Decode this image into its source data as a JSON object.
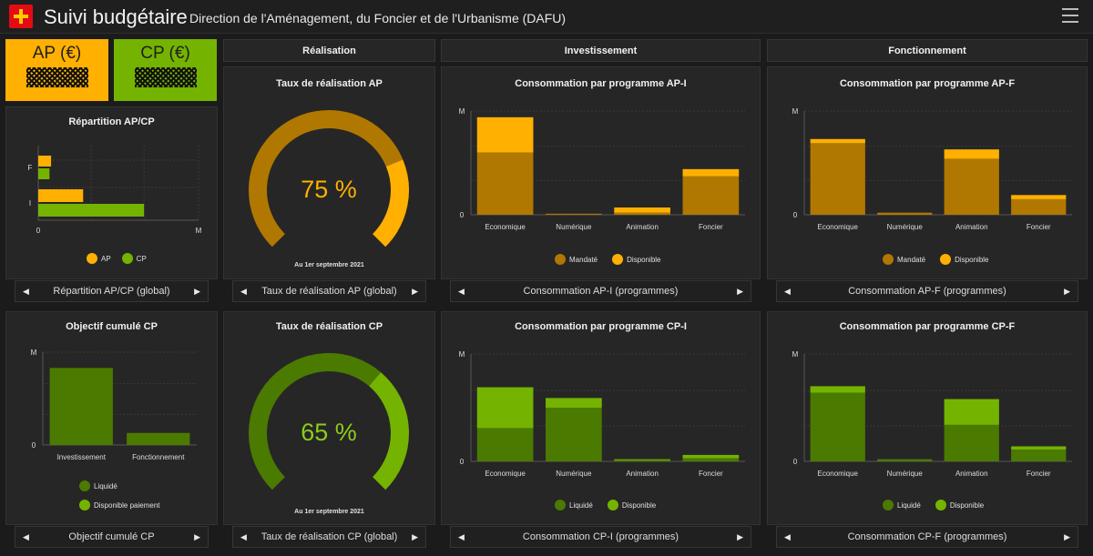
{
  "header": {
    "title": "Suivi budgétaire",
    "subtitle": "Direction de l'Aménagement, du Foncier et de l'Urbanisme (DAFU)"
  },
  "kpis": {
    "ap_label": "AP (€)",
    "cp_label": "CP (€)"
  },
  "sections": {
    "realisation": "Réalisation",
    "investissement": "Investissement",
    "fonctionnement": "Fonctionnement"
  },
  "colors": {
    "ap_dark": "#b07800",
    "ap_light": "#ffb000",
    "cp_dark": "#4b7a00",
    "cp_light": "#74b300"
  },
  "panels": {
    "repartition": {
      "title": "Répartition AP/CP",
      "nav_label": "Répartition AP/CP (global)",
      "legend": [
        "AP",
        "CP"
      ]
    },
    "objectif": {
      "title": "Objectif cumulé CP",
      "nav_label": "Objectif cumulé CP",
      "legend": [
        "Liquidé",
        "Disponible paiement"
      ]
    },
    "gauge_ap": {
      "title": "Taux de réalisation AP",
      "value_text": "75 %",
      "date": "Au 1er septembre 2021",
      "nav_label": "Taux de réalisation AP (global)"
    },
    "gauge_cp": {
      "title": "Taux de réalisation CP",
      "value_text": "65 %",
      "date": "Au 1er septembre 2021",
      "nav_label": "Taux de réalisation CP (global)"
    },
    "ap_i": {
      "title": "Consommation par programme AP-I",
      "nav_label": "Consommation AP-I (programmes)",
      "legend": [
        "Mandaté",
        "Disponible"
      ]
    },
    "ap_f": {
      "title": "Consommation par programme AP-F",
      "nav_label": "Consommation AP-F (programmes)",
      "legend": [
        "Mandaté",
        "Disponible"
      ]
    },
    "cp_i": {
      "title": "Consommation par programme CP-I",
      "nav_label": "Consommation CP-I (programmes)",
      "legend": [
        "Liquidé",
        "Disponible"
      ]
    },
    "cp_f": {
      "title": "Consommation par programme CP-F",
      "nav_label": "Consommation CP-F (programmes)",
      "legend": [
        "Liquidé",
        "Disponible"
      ]
    }
  },
  "chart_data": [
    {
      "id": "repartition",
      "type": "bar",
      "orientation": "horizontal",
      "stacked": false,
      "categories": [
        "F",
        "I"
      ],
      "series": [
        {
          "name": "AP",
          "values": [
            0.08,
            0.28
          ]
        },
        {
          "name": "CP",
          "values": [
            0.07,
            0.66
          ]
        }
      ],
      "xticks": [
        "0",
        "M"
      ],
      "xlim": [
        0,
        1
      ],
      "grid": true,
      "legend_position": "bottom"
    },
    {
      "id": "objectif",
      "type": "bar",
      "stacked": true,
      "categories": [
        "Investissement",
        "Fonctionnement"
      ],
      "series": [
        {
          "name": "Liquidé",
          "values": [
            0.83,
            0.13
          ]
        },
        {
          "name": "Disponible paiement",
          "values": [
            0,
            0
          ]
        }
      ],
      "yticks": [
        "0",
        "M"
      ],
      "ylim": [
        0,
        1
      ],
      "grid": true,
      "legend_position": "bottom"
    },
    {
      "id": "gauge_ap",
      "type": "gauge",
      "value": 75,
      "max": 100
    },
    {
      "id": "gauge_cp",
      "type": "gauge",
      "value": 65,
      "max": 100
    },
    {
      "id": "ap_i",
      "type": "bar",
      "stacked": true,
      "categories": [
        "Economique",
        "Numérique",
        "Animation",
        "Foncier"
      ],
      "series": [
        {
          "name": "Mandaté",
          "values": [
            0.6,
            0.01,
            0.02,
            0.37
          ]
        },
        {
          "name": "Disponible",
          "values": [
            0.34,
            0,
            0.05,
            0.07
          ]
        }
      ],
      "yticks": [
        "0",
        "M"
      ],
      "ylim": [
        0,
        1
      ],
      "grid": true,
      "legend_position": "bottom"
    },
    {
      "id": "ap_f",
      "type": "bar",
      "stacked": true,
      "categories": [
        "Economique",
        "Numérique",
        "Animation",
        "Foncier"
      ],
      "series": [
        {
          "name": "Mandaté",
          "values": [
            0.69,
            0.02,
            0.54,
            0.15
          ]
        },
        {
          "name": "Disponible",
          "values": [
            0.04,
            0,
            0.09,
            0.04
          ]
        }
      ],
      "yticks": [
        "0",
        "M"
      ],
      "ylim": [
        0,
        1
      ],
      "grid": true,
      "legend_position": "bottom"
    },
    {
      "id": "cp_i",
      "type": "bar",
      "stacked": true,
      "categories": [
        "Economique",
        "Numérique",
        "Animation",
        "Foncier"
      ],
      "series": [
        {
          "name": "Liquidé",
          "values": [
            0.31,
            0.5,
            0.01,
            0.03
          ]
        },
        {
          "name": "Disponible",
          "values": [
            0.38,
            0.09,
            0.01,
            0.03
          ]
        }
      ],
      "yticks": [
        "0",
        "M"
      ],
      "ylim": [
        0,
        1
      ],
      "grid": true,
      "legend_position": "bottom"
    },
    {
      "id": "cp_f",
      "type": "bar",
      "stacked": true,
      "categories": [
        "Economique",
        "Numérique",
        "Animation",
        "Foncier"
      ],
      "series": [
        {
          "name": "Liquidé",
          "values": [
            0.64,
            0.02,
            0.34,
            0.11
          ]
        },
        {
          "name": "Disponible",
          "values": [
            0.06,
            0,
            0.24,
            0.03
          ]
        }
      ],
      "yticks": [
        "0",
        "M"
      ],
      "ylim": [
        0,
        1
      ],
      "grid": true,
      "legend_position": "bottom"
    }
  ]
}
